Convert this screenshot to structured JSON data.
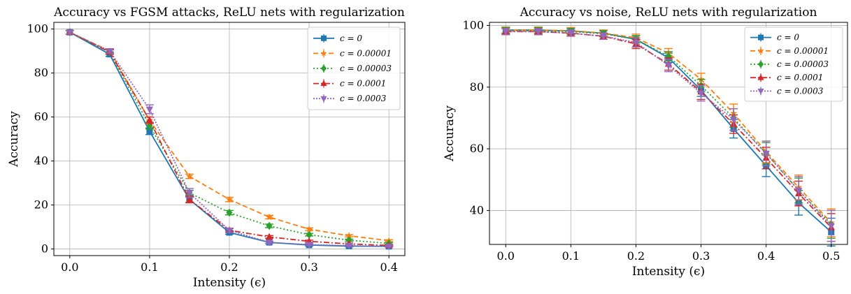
{
  "chart_data": [
    {
      "type": "line",
      "title": "Accuracy vs FGSM attacks, ReLU nets with regularization",
      "xlabel": "Intensity (ϵ)",
      "ylabel": "Accuracy",
      "xlim": [
        -0.02,
        0.42
      ],
      "ylim": [
        -3,
        103
      ],
      "xticks": [
        0.0,
        0.1,
        0.2,
        0.3,
        0.4
      ],
      "xtick_labels": [
        "0.0",
        "0.1",
        "0.2",
        "0.3",
        "0.4"
      ],
      "yticks": [
        0,
        20,
        40,
        60,
        80,
        100
      ],
      "ytick_labels": [
        "0",
        "20",
        "40",
        "60",
        "80",
        "100"
      ],
      "grid": true,
      "legend_position": "top-right",
      "x": [
        0.0,
        0.05,
        0.1,
        0.15,
        0.2,
        0.25,
        0.3,
        0.35,
        0.4
      ],
      "series": [
        {
          "name": "c = 0",
          "color": "#1f77b4",
          "dash": "",
          "marker": "square",
          "values": [
            98.5,
            88.5,
            53.5,
            22.5,
            7.5,
            3.0,
            1.8,
            1.3,
            1.2
          ],
          "err": [
            0.8,
            1.0,
            1.5,
            1.5,
            0.8,
            0.5,
            0.4,
            0.3,
            0.3
          ]
        },
        {
          "name": "c = 0.00001",
          "color": "#ff7f0e",
          "dash": "7,4",
          "marker": "star",
          "values": [
            98.5,
            90.0,
            58.5,
            33.0,
            22.5,
            14.5,
            9.0,
            6.0,
            3.8
          ],
          "err": [
            0.8,
            1.0,
            1.5,
            1.0,
            1.0,
            0.8,
            0.6,
            0.5,
            0.4
          ]
        },
        {
          "name": "c = 0.00003",
          "color": "#2ca02c",
          "dash": "2,3",
          "marker": "diamond",
          "values": [
            98.5,
            89.5,
            56.0,
            25.5,
            16.5,
            10.5,
            6.5,
            4.0,
            2.5
          ],
          "err": [
            0.8,
            1.0,
            1.5,
            1.2,
            1.0,
            0.8,
            0.6,
            0.5,
            0.4
          ]
        },
        {
          "name": "c = 0.0001",
          "color": "#d62728",
          "dash": "8,3,2,3",
          "marker": "triangle-up",
          "values": [
            98.5,
            89.5,
            58.5,
            22.5,
            8.5,
            5.5,
            3.5,
            2.3,
            1.6
          ],
          "err": [
            0.8,
            1.0,
            1.5,
            1.5,
            0.8,
            0.6,
            0.5,
            0.4,
            0.3
          ]
        },
        {
          "name": "c = 0.0003",
          "color": "#9467bd",
          "dash": "2,2",
          "marker": "triangle-down",
          "values": [
            98.5,
            90.0,
            63.5,
            25.5,
            8.5,
            3.0,
            2.0,
            1.5,
            1.2
          ],
          "err": [
            0.8,
            1.0,
            2.0,
            2.0,
            1.0,
            0.5,
            0.4,
            0.3,
            0.3
          ]
        }
      ]
    },
    {
      "type": "line",
      "title": "Accuracy vs noise, ReLU nets with regularization",
      "xlabel": "Intensity (ϵ)",
      "ylabel": "Accuracy",
      "xlim": [
        -0.025,
        0.525
      ],
      "ylim": [
        29,
        101
      ],
      "xticks": [
        0.0,
        0.1,
        0.2,
        0.3,
        0.4,
        0.5
      ],
      "xtick_labels": [
        "0.0",
        "0.1",
        "0.2",
        "0.3",
        "0.4",
        "0.5"
      ],
      "yticks": [
        40,
        60,
        80,
        100
      ],
      "ytick_labels": [
        "40",
        "60",
        "80",
        "100"
      ],
      "grid": true,
      "legend_position": "top-right",
      "x": [
        0.0,
        0.05,
        0.1,
        0.15,
        0.2,
        0.25,
        0.3,
        0.35,
        0.4,
        0.45,
        0.5
      ],
      "series": [
        {
          "name": "c = 0",
          "color": "#1f77b4",
          "dash": "",
          "marker": "square",
          "values": [
            98.5,
            98.5,
            98.2,
            97.5,
            95.5,
            89.5,
            79.0,
            66.5,
            54.5,
            42.5,
            33.0
          ],
          "err": [
            1.0,
            1.0,
            1.0,
            1.0,
            1.2,
            1.5,
            2.0,
            3.0,
            3.5,
            4.0,
            4.5
          ]
        },
        {
          "name": "c = 0.00001",
          "color": "#ff7f0e",
          "dash": "7,4",
          "marker": "star",
          "values": [
            98.5,
            98.5,
            98.3,
            97.5,
            96.0,
            91.0,
            82.5,
            71.5,
            59.0,
            47.5,
            36.0
          ],
          "err": [
            1.0,
            1.0,
            1.0,
            1.0,
            1.2,
            1.5,
            2.0,
            3.0,
            3.5,
            4.0,
            4.5
          ]
        },
        {
          "name": "c = 0.00003",
          "color": "#2ca02c",
          "dash": "2,3",
          "marker": "diamond",
          "values": [
            98.3,
            98.3,
            98.0,
            97.3,
            95.5,
            90.0,
            80.5,
            70.0,
            58.5,
            46.5,
            35.5
          ],
          "err": [
            1.0,
            1.0,
            1.0,
            1.0,
            1.2,
            1.5,
            2.0,
            3.0,
            3.5,
            4.0,
            4.5
          ]
        },
        {
          "name": "c = 0.0001",
          "color": "#d62728",
          "dash": "8,3,2,3",
          "marker": "triangle-up",
          "values": [
            98.0,
            98.0,
            97.5,
            96.5,
            94.0,
            87.5,
            78.5,
            68.0,
            57.0,
            45.5,
            34.5
          ],
          "err": [
            1.0,
            1.0,
            1.0,
            1.0,
            1.5,
            2.0,
            2.5,
            3.0,
            3.5,
            4.0,
            4.5
          ]
        },
        {
          "name": "c = 0.0003",
          "color": "#9467bd",
          "dash": "2,2",
          "marker": "triangle-down",
          "values": [
            98.0,
            98.0,
            97.5,
            96.5,
            94.5,
            87.0,
            78.0,
            69.5,
            58.5,
            46.5,
            35.0
          ],
          "err": [
            1.0,
            1.0,
            1.0,
            1.0,
            1.5,
            2.0,
            2.5,
            3.5,
            4.0,
            4.5,
            5.0
          ]
        }
      ]
    }
  ]
}
